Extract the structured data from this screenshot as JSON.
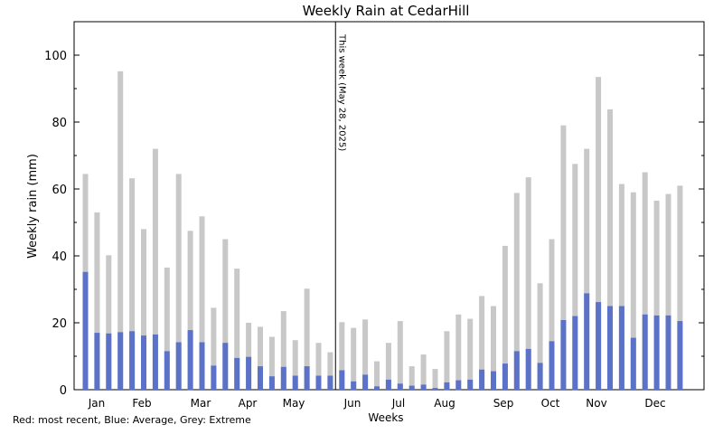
{
  "chart_data": {
    "type": "bar",
    "title": "Weekly Rain at CedarHill",
    "xlabel": "Weeks",
    "ylabel": "Weekly rain (mm)",
    "ylim": [
      0,
      110
    ],
    "yticks": [
      0,
      20,
      40,
      60,
      80,
      100
    ],
    "grid": false,
    "months": [
      "Jan",
      "Feb",
      "Mar",
      "Apr",
      "May",
      "Jun",
      "Jul",
      "Aug",
      "Sep",
      "Oct",
      "Nov",
      "Dec"
    ],
    "weeks": 52,
    "current_week_marker": {
      "week": 21.5,
      "label": "This week (May 28, 2025)"
    },
    "series": [
      {
        "name": "Extreme",
        "color": "#c8c8c8",
        "values": [
          64.5,
          53.0,
          40.2,
          95.2,
          63.2,
          48.0,
          72.0,
          36.5,
          64.5,
          47.5,
          51.8,
          24.5,
          45.0,
          36.2,
          20.0,
          18.8,
          15.8,
          23.5,
          14.8,
          30.2,
          14.0,
          11.2,
          20.2,
          18.5,
          21.0,
          8.5,
          14.0,
          20.5,
          7.0,
          10.5,
          6.2,
          17.5,
          22.5,
          21.2,
          28.0,
          25.0,
          43.0,
          58.8,
          63.5,
          31.8,
          45.0,
          79.0,
          67.5,
          72.0,
          93.5,
          83.8,
          61.5,
          59.0,
          65.0,
          56.5,
          58.5,
          61.0
        ]
      },
      {
        "name": "Average",
        "color": "#5b72c8",
        "values": [
          35.2,
          17.0,
          16.8,
          17.2,
          17.5,
          16.2,
          16.5,
          11.5,
          14.2,
          17.8,
          14.2,
          7.2,
          14.0,
          9.5,
          9.8,
          7.0,
          4.0,
          6.8,
          4.2,
          7.0,
          4.2,
          4.2,
          5.8,
          2.5,
          4.5,
          1.0,
          3.0,
          1.8,
          1.2,
          1.5,
          0.5,
          2.2,
          2.8,
          3.0,
          6.0,
          5.5,
          7.8,
          11.5,
          12.2,
          8.0,
          14.5,
          20.8,
          22.0,
          28.8,
          26.2,
          25.0,
          25.0,
          15.5,
          22.5,
          22.2,
          22.2,
          20.5
        ]
      }
    ],
    "legend_note": "Red: most recent, Blue: Average, Grey: Extreme"
  }
}
